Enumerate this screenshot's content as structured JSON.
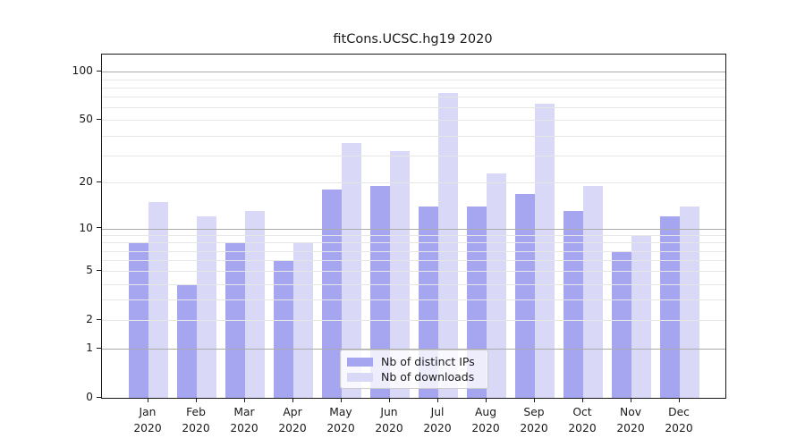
{
  "chart_data": {
    "type": "bar",
    "title": "fitCons.UCSC.hg19 2020",
    "year": "2020",
    "month_labels": [
      "Jan",
      "Feb",
      "Mar",
      "Apr",
      "May",
      "Jun",
      "Jul",
      "Aug",
      "Sep",
      "Oct",
      "Nov",
      "Dec"
    ],
    "categories": [
      "Jan 2020",
      "Feb 2020",
      "Mar 2020",
      "Apr 2020",
      "May 2020",
      "Jun 2020",
      "Jul 2020",
      "Aug 2020",
      "Sep 2020",
      "Oct 2020",
      "Nov 2020",
      "Dec 2020"
    ],
    "series": [
      {
        "name": "Nb of distinct IPs",
        "color": "#a6a6f0",
        "values": [
          8,
          4,
          8,
          6,
          18,
          19,
          14,
          14,
          17,
          13,
          7,
          12
        ]
      },
      {
        "name": "Nb of downloads",
        "color": "#d9d9f7",
        "values": [
          15,
          12,
          13,
          8,
          36,
          32,
          74,
          23,
          63,
          19,
          9,
          14
        ]
      }
    ],
    "yscale": "log1p",
    "ylim": [
      0,
      127
    ],
    "y_major_ticks": [
      0,
      1,
      2,
      5,
      10,
      20,
      50,
      100
    ],
    "y_decade_gridlines": [
      1,
      10,
      100
    ],
    "y_minor_gridlines": [
      2,
      3,
      4,
      5,
      6,
      7,
      8,
      9,
      20,
      30,
      40,
      50,
      60,
      70,
      80,
      90
    ],
    "grid": true,
    "legend_position": "inside-bottom-center",
    "xlabel": "",
    "ylabel": ""
  },
  "legend": {
    "items": [
      {
        "label": "Nb of distinct IPs",
        "color": "#a6a6f0"
      },
      {
        "label": "Nb of downloads",
        "color": "#d9d9f7"
      }
    ]
  },
  "colors": {
    "background": "#ffffff",
    "grid_major": "#ababab",
    "grid_minor": "#e6e6e6",
    "axis": "#1a1a1a",
    "text": "#1a1a1a",
    "legend_border": "#cccccc",
    "legend_bg": "rgba(255,255,255,0.8)"
  }
}
